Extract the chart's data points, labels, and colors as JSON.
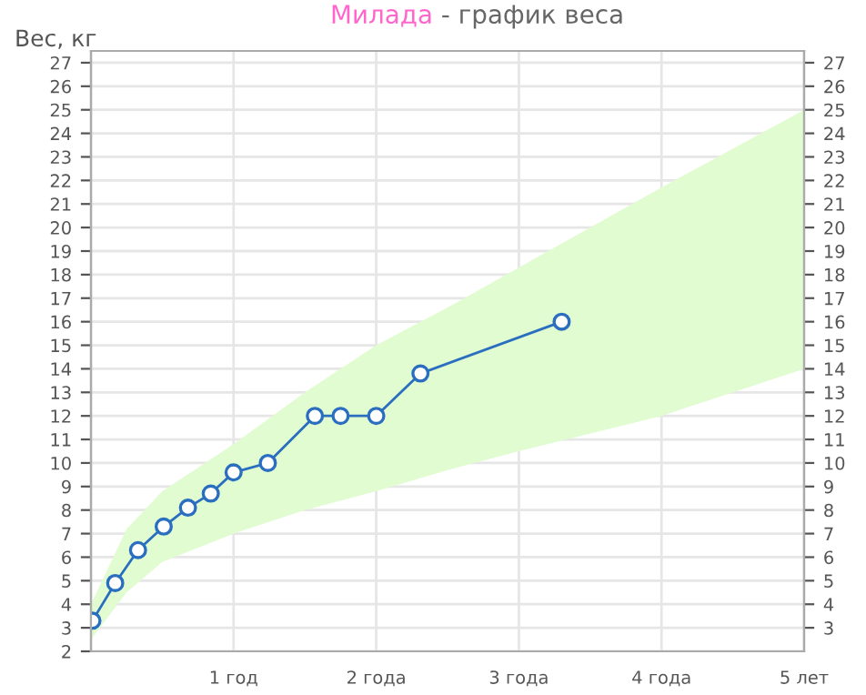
{
  "chart_data": {
    "type": "line",
    "title": "Милада - график веса",
    "ylabel": "Вес, кг",
    "series": [
      {
        "type": "area",
        "color": "#e2fcd2",
        "x": [
          0,
          0.25,
          0.5,
          1,
          1.5,
          2,
          2.5,
          3,
          4,
          5
        ],
        "values": [
          null,
          null,
          null,
          null,
          null,
          null,
          null,
          null,
          null,
          null
        ],
        "lower": [
          2.5,
          4.5,
          5.8,
          7.0,
          8.0,
          8.8,
          9.7,
          10.5,
          12.0,
          14.0
        ],
        "upper": [
          4.0,
          7.2,
          8.8,
          10.8,
          13.0,
          15.0,
          16.6,
          18.3,
          21.7,
          25.0
        ]
      },
      {
        "color": "#2a6ebf",
        "x": [
          0.01,
          0.17,
          0.33,
          0.51,
          0.68,
          0.84,
          1.0,
          1.24,
          1.57,
          1.75,
          2.0,
          2.31,
          3.3
        ],
        "values": [
          3.3,
          4.9,
          6.3,
          7.3,
          8.1,
          8.7,
          9.6,
          10.0,
          12.0,
          12.0,
          12.0,
          13.8,
          16.0
        ]
      }
    ],
    "xlim": [
      0,
      5
    ],
    "xticks": [
      {
        "value": 0,
        "label": null
      },
      {
        "value": 1,
        "label": "1 год"
      },
      {
        "value": 2,
        "label": "2 года"
      },
      {
        "value": 3,
        "label": "3 года"
      },
      {
        "value": 4,
        "label": "4 года"
      },
      {
        "value": 5,
        "label": "5 лет"
      }
    ],
    "ylim": [
      2,
      27.5
    ],
    "yticks": [
      2,
      3,
      4,
      5,
      6,
      7,
      8,
      9,
      10,
      11,
      12,
      13,
      14,
      15,
      16,
      17,
      18,
      19,
      20,
      21,
      22,
      23,
      24,
      25,
      26,
      27
    ],
    "y2lim": [
      2,
      27.5
    ],
    "y2ticks": [
      3,
      4,
      5,
      6,
      7,
      8,
      9,
      10,
      11,
      12,
      13,
      14,
      15,
      16,
      17,
      18,
      19,
      20,
      21,
      22,
      23,
      24,
      25,
      26,
      27
    ],
    "grid": true,
    "marker": "circle",
    "line_style": "solid",
    "legend": false
  }
}
